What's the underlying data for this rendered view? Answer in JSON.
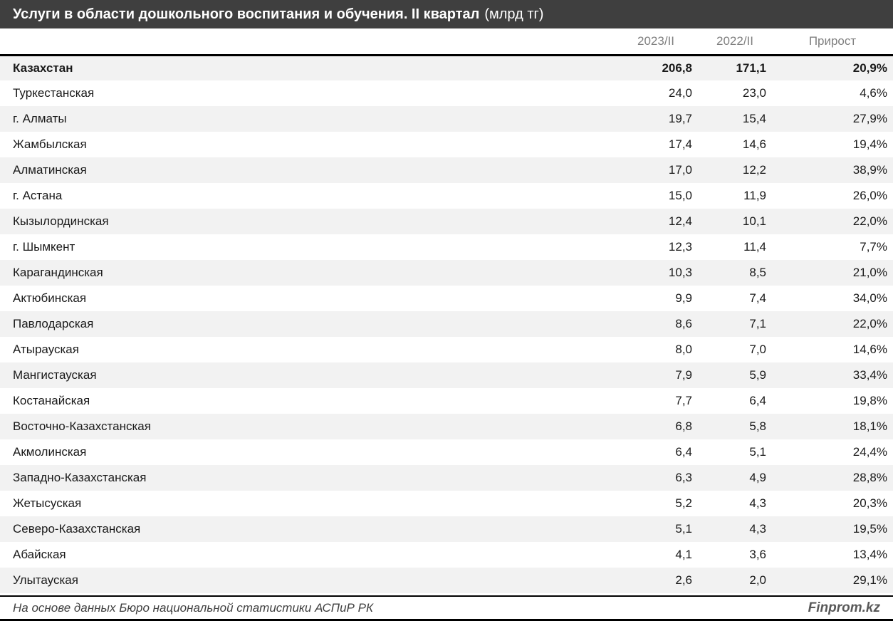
{
  "title": {
    "main": "Услуги в области дошкольного воспитания и обучения. II квартал",
    "unit": "(млрд тг)"
  },
  "chart_data": {
    "type": "table",
    "title": "Услуги в области дошкольного воспитания и обучения. II квартал (млрд тг)",
    "unit": "млрд тг",
    "columns": [
      "2023/II",
      "2022/II",
      "Прирост"
    ],
    "rows": [
      [
        "Казахстан",
        206.8,
        171.1,
        20.9
      ],
      [
        "Туркестанская",
        24.0,
        23.0,
        4.6
      ],
      [
        "г. Алматы",
        19.7,
        15.4,
        27.9
      ],
      [
        "Жамбылская",
        17.4,
        14.6,
        19.4
      ],
      [
        "Алматинская",
        17.0,
        12.2,
        38.9
      ],
      [
        "г. Астана",
        15.0,
        11.9,
        26.0
      ],
      [
        "Кызылординская",
        12.4,
        10.1,
        22.0
      ],
      [
        "г. Шымкент",
        12.3,
        11.4,
        7.7
      ],
      [
        "Карагандинская",
        10.3,
        8.5,
        21.0
      ],
      [
        "Актюбинская",
        9.9,
        7.4,
        34.0
      ],
      [
        "Павлодарская",
        8.6,
        7.1,
        22.0
      ],
      [
        "Атырауская",
        8.0,
        7.0,
        14.6
      ],
      [
        "Мангистауская",
        7.9,
        5.9,
        33.4
      ],
      [
        "Костанайская",
        7.7,
        6.4,
        19.8
      ],
      [
        "Восточно-Казахстанская",
        6.8,
        5.8,
        18.1
      ],
      [
        "Акмолинская",
        6.4,
        5.1,
        24.4
      ],
      [
        "Западно-Казахстанская",
        6.3,
        4.9,
        28.8
      ],
      [
        "Жетысуская",
        5.2,
        4.3,
        20.3
      ],
      [
        "Северо-Казахстанская",
        5.1,
        4.3,
        19.5
      ],
      [
        "Абайская",
        4.1,
        3.6,
        13.4
      ],
      [
        "Улытауская",
        2.6,
        2.0,
        29.1
      ]
    ]
  },
  "footer": {
    "source": "На основе данных Бюро национальной статистики АСПиР РК",
    "brand": "Finprom.kz"
  },
  "colors": {
    "title_bar_bg": "#3f3f3f",
    "title_text": "#ffffff",
    "header_text": "#7f7f7f",
    "stripe_bg": "#f2f2f2",
    "row_bg": "#ffffff",
    "text": "#1a1a1a",
    "border": "#000000",
    "footer_text": "#404040",
    "brand_text": "#595959"
  }
}
